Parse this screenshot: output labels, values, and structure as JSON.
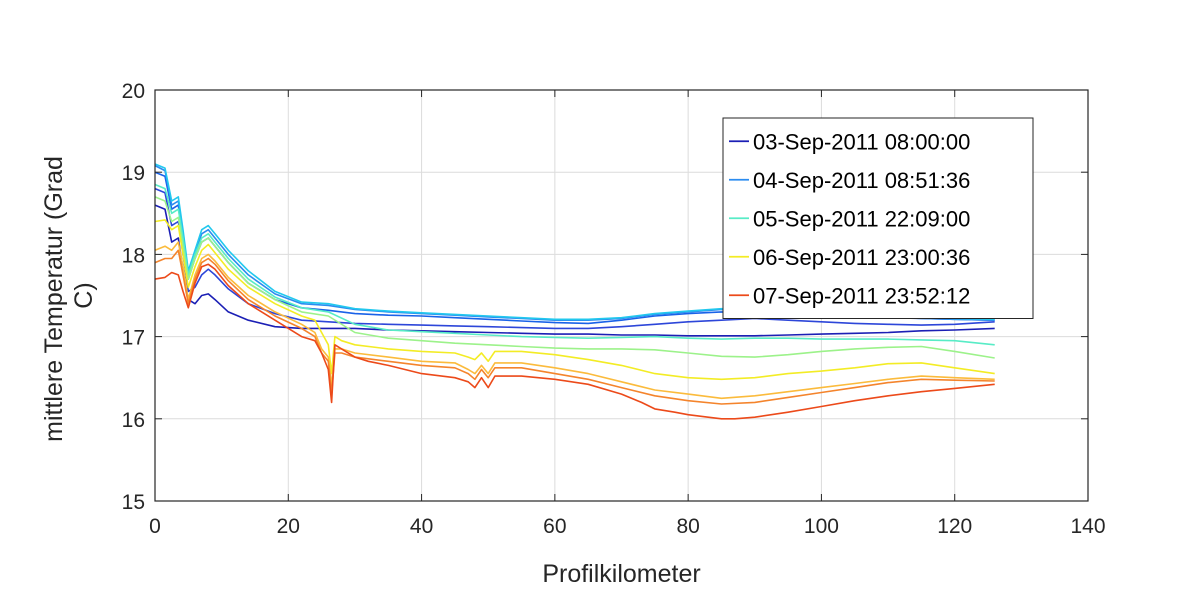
{
  "chart_data": {
    "type": "line",
    "title": "",
    "xlabel": "Profilkilometer",
    "ylabel_lines": [
      "mittlere Temperatur (Grad",
      "C)"
    ],
    "xlim": [
      0,
      140
    ],
    "ylim": [
      15,
      20
    ],
    "xticks": [
      0,
      20,
      40,
      60,
      80,
      100,
      120,
      140
    ],
    "yticks": [
      15,
      16,
      17,
      18,
      19,
      20
    ],
    "grid": true,
    "legend_position": "top-right",
    "series": [
      {
        "name": "03-Sep-2011 08:00:00",
        "color": "#1b1fb5",
        "x": [
          0,
          1.5,
          2.5,
          3.5,
          4.2,
          5,
          6,
          7,
          8,
          9,
          11,
          14,
          18,
          22,
          26,
          30,
          35,
          40,
          45,
          50,
          55,
          60,
          65,
          70,
          75,
          80,
          85,
          90,
          95,
          100,
          105,
          110,
          115,
          120,
          126
        ],
        "y": [
          18.6,
          18.55,
          18.15,
          18.2,
          17.8,
          17.45,
          17.4,
          17.5,
          17.52,
          17.45,
          17.3,
          17.2,
          17.12,
          17.1,
          17.1,
          17.1,
          17.08,
          17.07,
          17.06,
          17.05,
          17.04,
          17.03,
          17.03,
          17.02,
          17.02,
          17.01,
          17.01,
          17.01,
          17.02,
          17.03,
          17.04,
          17.05,
          17.07,
          17.08,
          17.1
        ]
      },
      {
        "name": "",
        "color": "#2d46d9",
        "x": [
          0,
          1.5,
          2.5,
          3.5,
          4.2,
          5,
          6,
          7,
          8,
          9,
          11,
          14,
          18,
          22,
          26,
          30,
          35,
          40,
          45,
          50,
          55,
          60,
          65,
          70,
          75,
          80,
          85,
          90,
          95,
          100,
          105,
          110,
          115,
          120,
          126
        ],
        "y": [
          18.8,
          18.75,
          18.35,
          18.4,
          18.0,
          17.55,
          17.6,
          17.75,
          17.82,
          17.75,
          17.58,
          17.4,
          17.28,
          17.2,
          17.18,
          17.16,
          17.15,
          17.14,
          17.13,
          17.12,
          17.11,
          17.1,
          17.1,
          17.12,
          17.15,
          17.18,
          17.2,
          17.22,
          17.2,
          17.18,
          17.16,
          17.15,
          17.14,
          17.15,
          17.18
        ]
      },
      {
        "name": "",
        "color": "#1a62e8",
        "x": [
          0,
          1.5,
          2.5,
          3.5,
          4.2,
          5,
          6,
          7,
          8,
          9,
          11,
          14,
          18,
          22,
          26,
          30,
          35,
          40,
          45,
          50,
          55,
          60,
          65,
          70,
          75,
          80,
          85,
          90,
          95,
          100,
          105,
          110,
          115,
          120,
          126
        ],
        "y": [
          19.0,
          18.95,
          18.55,
          18.6,
          18.2,
          17.7,
          17.95,
          18.15,
          18.2,
          18.1,
          17.9,
          17.65,
          17.45,
          17.35,
          17.32,
          17.28,
          17.26,
          17.25,
          17.23,
          17.21,
          17.19,
          17.17,
          17.16,
          17.2,
          17.25,
          17.28,
          17.3,
          17.28,
          17.26,
          17.25,
          17.24,
          17.23,
          17.22,
          17.21,
          17.2
        ]
      },
      {
        "name": "04-Sep-2011 08:51:36",
        "color": "#2b8cf0",
        "x": [
          0,
          1.5,
          2.5,
          3.5,
          4.2,
          5,
          6,
          7,
          8,
          9,
          11,
          14,
          18,
          22,
          26,
          30,
          35,
          40,
          45,
          50,
          55,
          60,
          65,
          70,
          75,
          80,
          85,
          90,
          95,
          100,
          105,
          110,
          115,
          120,
          126
        ],
        "y": [
          19.08,
          19.02,
          18.6,
          18.65,
          18.25,
          17.75,
          18.0,
          18.25,
          18.3,
          18.2,
          18.0,
          17.75,
          17.52,
          17.4,
          17.38,
          17.33,
          17.3,
          17.28,
          17.26,
          17.24,
          17.22,
          17.2,
          17.2,
          17.22,
          17.27,
          17.3,
          17.33,
          17.31,
          17.29,
          17.27,
          17.25,
          17.24,
          17.22,
          17.21,
          17.2
        ]
      },
      {
        "name": "",
        "color": "#22c8ee",
        "x": [
          0,
          1.5,
          2.5,
          3.5,
          4.2,
          5,
          6,
          7,
          8,
          9,
          11,
          14,
          18,
          22,
          26,
          30,
          35,
          40,
          45,
          50,
          55,
          60,
          65,
          70,
          75,
          80,
          85,
          90,
          95,
          100,
          105,
          110,
          115,
          120,
          126
        ],
        "y": [
          19.1,
          19.05,
          18.65,
          18.7,
          18.3,
          17.8,
          18.05,
          18.3,
          18.35,
          18.25,
          18.05,
          17.8,
          17.55,
          17.42,
          17.4,
          17.34,
          17.31,
          17.29,
          17.27,
          17.25,
          17.23,
          17.21,
          17.21,
          17.23,
          17.28,
          17.31,
          17.34,
          17.32,
          17.3,
          17.28,
          17.26,
          17.25,
          17.23,
          17.22,
          17.21
        ]
      },
      {
        "name": "05-Sep-2011 22:09:00",
        "color": "#58ecc6",
        "x": [
          0,
          1.5,
          2.5,
          3.5,
          4.2,
          5,
          6,
          7,
          8,
          9,
          11,
          14,
          18,
          22,
          26,
          30,
          35,
          40,
          45,
          50,
          55,
          60,
          65,
          70,
          75,
          80,
          85,
          90,
          95,
          100,
          105,
          110,
          115,
          120,
          126
        ],
        "y": [
          18.85,
          18.8,
          18.5,
          18.55,
          18.2,
          17.75,
          18.0,
          18.2,
          18.25,
          18.15,
          17.95,
          17.7,
          17.48,
          17.35,
          17.3,
          17.15,
          17.08,
          17.06,
          17.04,
          17.02,
          17.0,
          16.99,
          16.98,
          16.99,
          17.0,
          16.98,
          16.97,
          16.98,
          16.98,
          16.97,
          16.97,
          16.97,
          16.96,
          16.95,
          16.9
        ]
      },
      {
        "name": "",
        "color": "#9cf28a",
        "x": [
          0,
          1.5,
          2.5,
          3.5,
          4.2,
          5,
          6,
          7,
          8,
          9,
          11,
          14,
          18,
          22,
          26,
          30,
          35,
          40,
          45,
          50,
          55,
          60,
          65,
          70,
          75,
          80,
          85,
          90,
          95,
          100,
          105,
          110,
          115,
          120,
          126
        ],
        "y": [
          18.7,
          18.65,
          18.4,
          18.45,
          18.1,
          17.7,
          17.95,
          18.15,
          18.2,
          18.1,
          17.9,
          17.65,
          17.45,
          17.3,
          17.25,
          17.05,
          16.98,
          16.95,
          16.92,
          16.9,
          16.88,
          16.86,
          16.85,
          16.85,
          16.84,
          16.8,
          16.76,
          16.75,
          16.78,
          16.82,
          16.85,
          16.87,
          16.88,
          16.82,
          16.74
        ]
      },
      {
        "name": "06-Sep-2011 23:00:36",
        "color": "#f3ec25",
        "x": [
          0,
          1.5,
          2.5,
          3.5,
          4.2,
          5,
          6,
          7,
          8,
          9,
          11,
          14,
          18,
          22,
          24,
          25,
          26,
          26.5,
          27,
          28,
          30,
          35,
          40,
          45,
          47,
          48,
          49,
          50,
          51,
          55,
          60,
          65,
          70,
          75,
          80,
          85,
          90,
          95,
          100,
          105,
          110,
          115,
          120,
          126
        ],
        "y": [
          18.4,
          18.42,
          18.3,
          18.35,
          18.0,
          17.6,
          17.85,
          18.05,
          18.12,
          18.02,
          17.82,
          17.6,
          17.4,
          17.25,
          17.2,
          17.05,
          16.9,
          16.55,
          17.0,
          16.95,
          16.9,
          16.85,
          16.82,
          16.8,
          16.75,
          16.72,
          16.8,
          16.7,
          16.82,
          16.82,
          16.78,
          16.72,
          16.65,
          16.55,
          16.5,
          16.48,
          16.5,
          16.55,
          16.58,
          16.62,
          16.67,
          16.68,
          16.62,
          16.55
        ]
      },
      {
        "name": "",
        "color": "#fbbb3c",
        "x": [
          0,
          1.5,
          2.5,
          3.5,
          4.2,
          5,
          6,
          7,
          8,
          9,
          11,
          14,
          18,
          22,
          24,
          25,
          26,
          26.5,
          27,
          28,
          30,
          35,
          40,
          45,
          47,
          48,
          49,
          50,
          51,
          55,
          60,
          65,
          70,
          75,
          80,
          85,
          90,
          95,
          100,
          105,
          110,
          115,
          120,
          126
        ],
        "y": [
          18.05,
          18.1,
          18.05,
          18.15,
          17.85,
          17.45,
          17.75,
          17.95,
          18.0,
          17.92,
          17.72,
          17.5,
          17.3,
          17.15,
          17.05,
          16.85,
          16.75,
          16.4,
          16.85,
          16.85,
          16.8,
          16.75,
          16.7,
          16.68,
          16.6,
          16.55,
          16.65,
          16.55,
          16.68,
          16.68,
          16.62,
          16.55,
          16.45,
          16.35,
          16.3,
          16.25,
          16.28,
          16.33,
          16.38,
          16.43,
          16.48,
          16.52,
          16.5,
          16.48
        ]
      },
      {
        "name": "",
        "color": "#f4842c",
        "x": [
          0,
          1.5,
          2.5,
          3.5,
          4.2,
          5,
          6,
          7,
          8,
          9,
          11,
          14,
          18,
          22,
          24,
          25,
          26,
          26.5,
          27,
          28,
          30,
          35,
          40,
          45,
          47,
          48,
          49,
          50,
          51,
          55,
          60,
          65,
          70,
          75,
          80,
          85,
          90,
          95,
          100,
          105,
          110,
          115,
          120,
          126
        ],
        "y": [
          17.9,
          17.95,
          17.95,
          18.05,
          17.75,
          17.4,
          17.7,
          17.9,
          17.95,
          17.88,
          17.68,
          17.45,
          17.25,
          17.1,
          17.0,
          16.8,
          16.7,
          16.3,
          16.8,
          16.8,
          16.75,
          16.7,
          16.65,
          16.62,
          16.55,
          16.48,
          16.6,
          16.5,
          16.62,
          16.62,
          16.55,
          16.48,
          16.38,
          16.28,
          16.22,
          16.18,
          16.2,
          16.26,
          16.32,
          16.38,
          16.44,
          16.48,
          16.47,
          16.46
        ]
      },
      {
        "name": "07-Sep-2011 23:52:12",
        "color": "#ec4a1a",
        "x": [
          0,
          1.5,
          2.5,
          3.5,
          4.2,
          5,
          6,
          7,
          8,
          9,
          11,
          14,
          18,
          22,
          24,
          25,
          26,
          26.5,
          27,
          28,
          30,
          32,
          35,
          40,
          45,
          47,
          48,
          49,
          50,
          51,
          55,
          60,
          65,
          70,
          73,
          75,
          78,
          80,
          83,
          85,
          87,
          90,
          95,
          100,
          105,
          110,
          115,
          120,
          126
        ],
        "y": [
          17.7,
          17.72,
          17.78,
          17.75,
          17.55,
          17.35,
          17.65,
          17.85,
          17.88,
          17.82,
          17.62,
          17.4,
          17.2,
          17.0,
          16.95,
          16.8,
          16.6,
          16.2,
          16.9,
          16.85,
          16.75,
          16.7,
          16.65,
          16.55,
          16.5,
          16.45,
          16.38,
          16.5,
          16.38,
          16.52,
          16.52,
          16.48,
          16.42,
          16.3,
          16.2,
          16.12,
          16.08,
          16.05,
          16.02,
          16.0,
          16.0,
          16.02,
          16.08,
          16.15,
          16.22,
          16.28,
          16.33,
          16.37,
          16.42
        ]
      }
    ]
  }
}
